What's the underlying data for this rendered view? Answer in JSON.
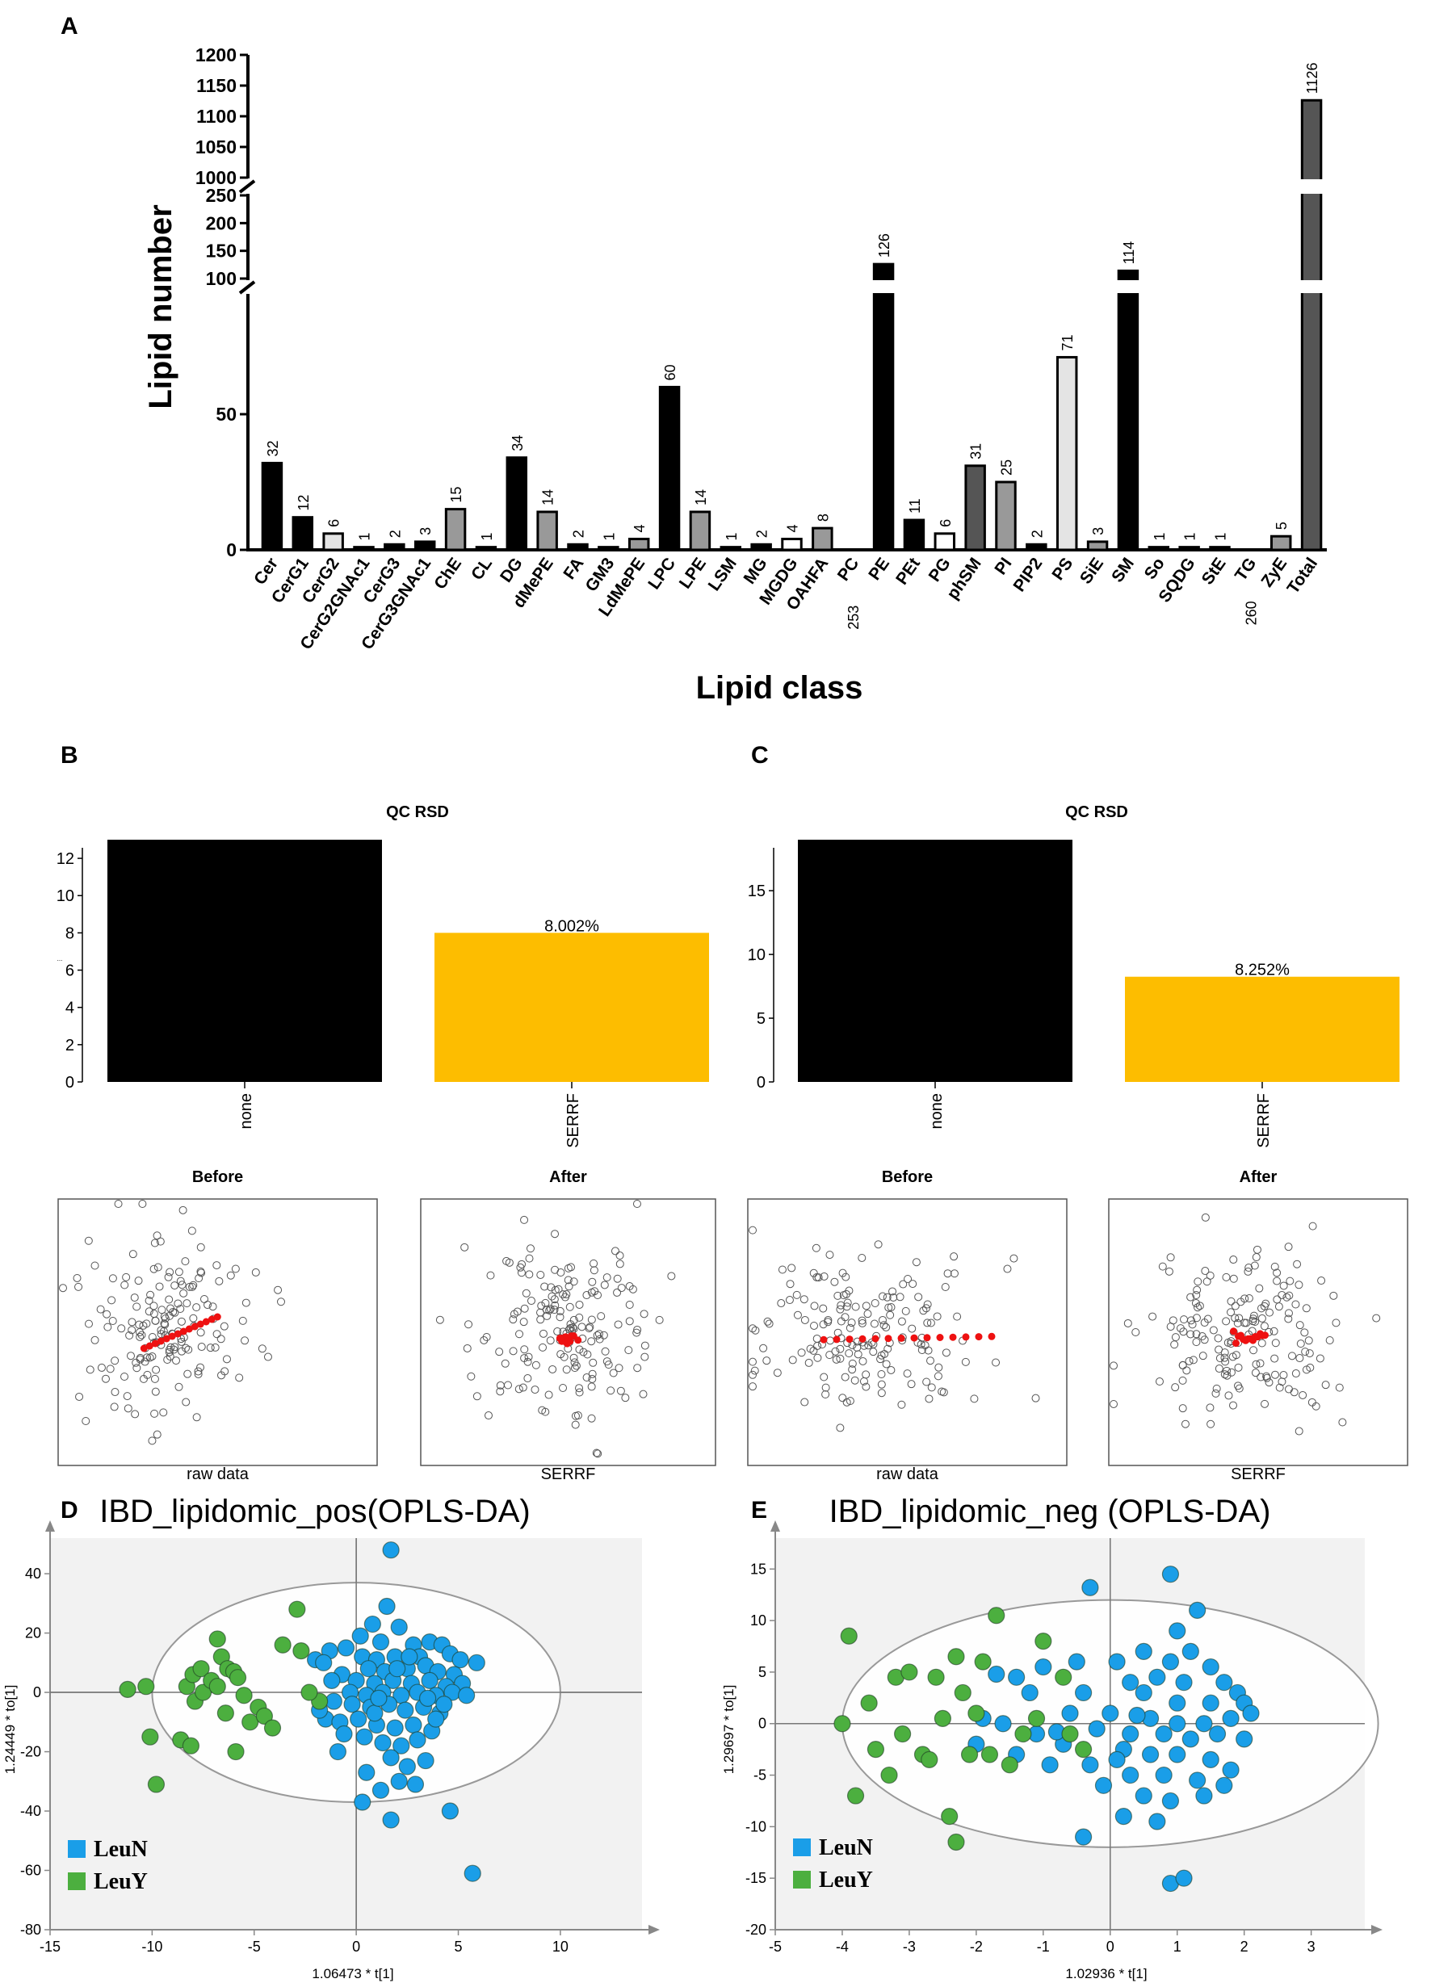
{
  "panels": {
    "A": "A",
    "B": "B",
    "C": "C",
    "D": "D",
    "E": "E"
  },
  "chart_data": [
    {
      "id": "A",
      "type": "bar",
      "title": "",
      "xlabel": "Lipid class",
      "ylabel": "Lipid number",
      "axis_breaks": [
        [
          100,
          1000
        ],
        [
          250,
          1000
        ]
      ],
      "yticks_lower": [
        "0",
        "50",
        "100"
      ],
      "yticks_middle": [
        "150",
        "200",
        "250"
      ],
      "yticks_upper": [
        "1000",
        "1050",
        "1100",
        "1150",
        "1200"
      ],
      "categories": [
        "Cer",
        "CerG1",
        "CerG2",
        "CerG2GNAc1",
        "CerG3",
        "CerG3GNAc1",
        "ChE",
        "CL",
        "DG",
        "dMePE",
        "FA",
        "GM3",
        "LdMePE",
        "LPC",
        "LPE",
        "LSM",
        "MG",
        "MGDG",
        "OAHFA",
        "PC",
        "PE",
        "PEt",
        "PG",
        "phSM",
        "PI",
        "PIP2",
        "PS",
        "SiE",
        "SM",
        "So",
        "SQDG",
        "StE",
        "TG",
        "ZyE",
        "Total"
      ],
      "values": [
        32,
        12,
        6,
        1,
        2,
        3,
        15,
        1,
        34,
        14,
        2,
        1,
        4,
        60,
        14,
        1,
        2,
        4,
        8,
        253,
        126,
        11,
        6,
        31,
        25,
        2,
        71,
        3,
        114,
        1,
        1,
        1,
        260,
        5,
        1126
      ],
      "value_labels": [
        "32",
        "12",
        "6",
        "1",
        "2",
        "3",
        "15",
        "1",
        "34",
        "14",
        "2",
        "1",
        "4",
        "60",
        "14",
        "1",
        "2",
        "4",
        "8",
        "253",
        "126",
        "11",
        "6",
        "31",
        "25",
        "2",
        "71",
        "3",
        "114",
        "1",
        "1",
        "1",
        "260",
        "5",
        "1126"
      ],
      "fills": [
        "black",
        "black",
        "light",
        "black",
        "black",
        "black",
        "gray",
        "black",
        "black",
        "gray",
        "black",
        "black",
        "gray",
        "black",
        "gray",
        "black",
        "black",
        "white",
        "gray",
        "black",
        "black",
        "black",
        "white",
        "dgray",
        "gray",
        "black",
        "light",
        "gray",
        "black",
        "black",
        "black",
        "black",
        "dgray",
        "gray",
        "dgray"
      ],
      "colors": {
        "black": "#000000",
        "dgray": "#555555",
        "gray": "#999999",
        "light": "#e4e4e4",
        "white": "#ffffff"
      }
    },
    {
      "id": "B",
      "type": "bar",
      "title": "QC RSD",
      "categories": [
        "none",
        "SERRF"
      ],
      "values": [
        13.5,
        8.002
      ],
      "value_labels": [
        "",
        "8.002%"
      ],
      "yticks": [
        "0",
        "2",
        "4",
        "6",
        "8",
        "10",
        "12"
      ],
      "ylim": [
        0,
        13
      ],
      "ylabel": "...",
      "colors": [
        "#000000",
        "#fdbd00"
      ]
    },
    {
      "id": "C",
      "type": "bar",
      "title": "QC RSD",
      "categories": [
        "none",
        "SERRF"
      ],
      "values": [
        19,
        8.252
      ],
      "value_labels": [
        "",
        "8.252%"
      ],
      "yticks": [
        "0",
        "5",
        "10",
        "15"
      ],
      "ylim": [
        0,
        19
      ],
      "ylabel": "...",
      "colors": [
        "#000000",
        "#fdbd00"
      ]
    },
    {
      "id": "B-scatter",
      "type": "scatter",
      "panels": [
        {
          "title": "Before",
          "xlabel": "raw data"
        },
        {
          "title": "After",
          "xlabel": "SERRF"
        }
      ]
    },
    {
      "id": "C-scatter",
      "type": "scatter",
      "panels": [
        {
          "title": "Before",
          "xlabel": "raw data"
        },
        {
          "title": "After",
          "xlabel": "SERRF"
        }
      ]
    },
    {
      "id": "D",
      "type": "scatter",
      "title": "IBD_lipidomic_pos(OPLS-DA)",
      "xlabel": "1.06473 * t[1]",
      "ylabel": "1.24449 * to[1]",
      "xticks": [
        "-15",
        "-10",
        "-5",
        "0",
        "5",
        "10"
      ],
      "yticks": [
        "-80",
        "-60",
        "-40",
        "-20",
        "0",
        "20",
        "40"
      ],
      "xlim": [
        -15,
        14
      ],
      "ylim": [
        -80,
        52
      ],
      "ellipse": {
        "cx": 0,
        "cy": 0,
        "rx": 10,
        "ry": 37
      },
      "legend": [
        {
          "name": "LeuN",
          "color": "#1a9ee8"
        },
        {
          "name": "LeuY",
          "color": "#4caf3f"
        }
      ],
      "series": [
        {
          "name": "LeuN",
          "points": [
            [
              1.7,
              48
            ],
            [
              1.5,
              29
            ],
            [
              0.8,
              23
            ],
            [
              2.1,
              22
            ],
            [
              0.2,
              19
            ],
            [
              1.2,
              17
            ],
            [
              2.8,
              16
            ],
            [
              3.6,
              17
            ],
            [
              4.2,
              16
            ],
            [
              -0.5,
              15
            ],
            [
              -1.3,
              14
            ],
            [
              -2.0,
              11
            ],
            [
              -1.6,
              10
            ],
            [
              0.3,
              12
            ],
            [
              1.0,
              11
            ],
            [
              1.9,
              12
            ],
            [
              3.1,
              12
            ],
            [
              4.6,
              13
            ],
            [
              5.1,
              11
            ],
            [
              5.9,
              10
            ],
            [
              0.6,
              8
            ],
            [
              1.4,
              7
            ],
            [
              2.5,
              8
            ],
            [
              3.4,
              9
            ],
            [
              4.0,
              7
            ],
            [
              4.8,
              6
            ],
            [
              -0.7,
              6
            ],
            [
              -1.2,
              4
            ],
            [
              0.0,
              4
            ],
            [
              0.9,
              3
            ],
            [
              1.8,
              4
            ],
            [
              2.7,
              3
            ],
            [
              3.6,
              4
            ],
            [
              4.4,
              2
            ],
            [
              5.2,
              3
            ],
            [
              -0.3,
              0
            ],
            [
              0.5,
              -1
            ],
            [
              1.3,
              0
            ],
            [
              2.2,
              -1
            ],
            [
              3.0,
              0
            ],
            [
              3.9,
              -1
            ],
            [
              4.7,
              0
            ],
            [
              -1.1,
              -3
            ],
            [
              -0.2,
              -4
            ],
            [
              0.7,
              -5
            ],
            [
              1.6,
              -4
            ],
            [
              2.4,
              -6
            ],
            [
              3.3,
              -5
            ],
            [
              4.1,
              -7
            ],
            [
              -1.5,
              -9
            ],
            [
              -0.8,
              -10
            ],
            [
              0.1,
              -9
            ],
            [
              1.0,
              -11
            ],
            [
              1.9,
              -12
            ],
            [
              2.8,
              -11
            ],
            [
              3.7,
              -13
            ],
            [
              0.4,
              -15
            ],
            [
              1.3,
              -17
            ],
            [
              2.2,
              -18
            ],
            [
              3.0,
              -16
            ],
            [
              1.7,
              -22
            ],
            [
              2.5,
              -25
            ],
            [
              3.4,
              -23
            ],
            [
              2.1,
              -30
            ],
            [
              2.9,
              -31
            ],
            [
              1.2,
              -33
            ],
            [
              0.5,
              -27
            ],
            [
              -0.6,
              -14
            ],
            [
              -1.8,
              -6
            ],
            [
              2.0,
              8
            ],
            [
              0.9,
              -7
            ],
            [
              3.5,
              -2
            ],
            [
              4.3,
              -4
            ],
            [
              5.4,
              -1
            ],
            [
              -0.9,
              -20
            ],
            [
              0.3,
              -37
            ],
            [
              1.7,
              -43
            ],
            [
              4.6,
              -40
            ],
            [
              5.7,
              -61
            ],
            [
              2.6,
              12
            ],
            [
              1.1,
              -2
            ],
            [
              3.9,
              -9
            ]
          ]
        },
        {
          "name": "LeuY",
          "points": [
            [
              -11.2,
              1
            ],
            [
              -10.3,
              2
            ],
            [
              -10.1,
              -15
            ],
            [
              -9.8,
              -31
            ],
            [
              -8.6,
              -16
            ],
            [
              -8.1,
              -18
            ],
            [
              -7.9,
              -3
            ],
            [
              -8.3,
              2
            ],
            [
              -8.0,
              6
            ],
            [
              -7.5,
              0
            ],
            [
              -7.6,
              8
            ],
            [
              -7.1,
              4
            ],
            [
              -6.8,
              2
            ],
            [
              -6.6,
              12
            ],
            [
              -6.8,
              18
            ],
            [
              -6.3,
              8
            ],
            [
              -6.0,
              7
            ],
            [
              -5.8,
              5
            ],
            [
              -5.5,
              -1
            ],
            [
              -6.4,
              -7
            ],
            [
              -5.2,
              -10
            ],
            [
              -4.8,
              -5
            ],
            [
              -4.5,
              -8
            ],
            [
              -4.1,
              -12
            ],
            [
              -5.9,
              -20
            ],
            [
              -3.6,
              16
            ],
            [
              -2.7,
              14
            ],
            [
              -2.9,
              28
            ],
            [
              -1.8,
              -3
            ],
            [
              -2.3,
              0
            ]
          ]
        }
      ]
    },
    {
      "id": "E",
      "type": "scatter",
      "title": "IBD_lipidomic_neg (OPLS-DA)",
      "xlabel": "1.02936 * t[1]",
      "ylabel": "1.29697 * to[1]",
      "xticks": [
        "-5",
        "-4",
        "-3",
        "-2",
        "-1",
        "0",
        "1",
        "2",
        "3"
      ],
      "yticks": [
        "-20",
        "-15",
        "-10",
        "-5",
        "0",
        "5",
        "10",
        "15"
      ],
      "xlim": [
        -5,
        3.8
      ],
      "ylim": [
        -20,
        18
      ],
      "ellipse": {
        "cx": 0,
        "cy": 0,
        "rx": 4.0,
        "ry": 12
      },
      "legend": [
        {
          "name": "LeuN",
          "color": "#1a9ee8"
        },
        {
          "name": "LeuY",
          "color": "#4caf3f"
        }
      ],
      "series": [
        {
          "name": "LeuN",
          "points": [
            [
              0.9,
              14.5
            ],
            [
              -0.3,
              13.2
            ],
            [
              1.3,
              11
            ],
            [
              1.0,
              9
            ],
            [
              0.5,
              7
            ],
            [
              1.2,
              7
            ],
            [
              -0.5,
              6
            ],
            [
              -1.0,
              5.5
            ],
            [
              0.1,
              6
            ],
            [
              0.9,
              6
            ],
            [
              1.5,
              5.5
            ],
            [
              0.3,
              4
            ],
            [
              0.7,
              4.5
            ],
            [
              1.1,
              4
            ],
            [
              1.7,
              4
            ],
            [
              1.9,
              3
            ],
            [
              2.0,
              2
            ],
            [
              -1.4,
              4.5
            ],
            [
              -1.2,
              3
            ],
            [
              -0.4,
              3
            ],
            [
              0.5,
              3
            ],
            [
              1.0,
              2
            ],
            [
              1.5,
              2
            ],
            [
              2.1,
              1
            ],
            [
              -0.6,
              1
            ],
            [
              0.0,
              1
            ],
            [
              0.6,
              0.5
            ],
            [
              1.0,
              0
            ],
            [
              1.4,
              0
            ],
            [
              1.8,
              0.5
            ],
            [
              -1.6,
              0
            ],
            [
              -1.1,
              -1
            ],
            [
              -0.2,
              -0.5
            ],
            [
              0.3,
              -1
            ],
            [
              0.8,
              -1
            ],
            [
              1.2,
              -1.5
            ],
            [
              1.6,
              -1
            ],
            [
              -2.0,
              -2
            ],
            [
              -1.4,
              -3
            ],
            [
              -0.7,
              -2
            ],
            [
              0.2,
              -2.5
            ],
            [
              0.6,
              -3
            ],
            [
              1.0,
              -3
            ],
            [
              1.5,
              -3.5
            ],
            [
              -0.3,
              -4
            ],
            [
              0.3,
              -5
            ],
            [
              0.8,
              -5
            ],
            [
              1.3,
              -5.5
            ],
            [
              1.7,
              -6
            ],
            [
              -0.1,
              -6
            ],
            [
              0.5,
              -7
            ],
            [
              0.9,
              -7.5
            ],
            [
              1.4,
              -7
            ],
            [
              0.2,
              -9
            ],
            [
              0.7,
              -9.5
            ],
            [
              -0.4,
              -11
            ],
            [
              0.9,
              -15.5
            ],
            [
              1.1,
              -15
            ],
            [
              -1.7,
              4.8
            ],
            [
              -1.9,
              0.5
            ],
            [
              -0.9,
              -4
            ],
            [
              0.1,
              -3.5
            ],
            [
              2.0,
              -1.5
            ],
            [
              1.8,
              -4.5
            ],
            [
              0.4,
              0.8
            ],
            [
              -0.8,
              -0.8
            ]
          ]
        },
        {
          "name": "LeuY",
          "points": [
            [
              -3.9,
              8.5
            ],
            [
              -4.0,
              0
            ],
            [
              -3.6,
              2
            ],
            [
              -3.8,
              -7
            ],
            [
              -3.2,
              4.5
            ],
            [
              -3.0,
              5
            ],
            [
              -3.1,
              -1
            ],
            [
              -3.3,
              -5
            ],
            [
              -2.8,
              -3
            ],
            [
              -2.6,
              4.5
            ],
            [
              -2.5,
              0.5
            ],
            [
              -2.4,
              -9
            ],
            [
              -2.3,
              -11.5
            ],
            [
              -2.2,
              3
            ],
            [
              -2.1,
              -3
            ],
            [
              -2.0,
              1
            ],
            [
              -1.9,
              6
            ],
            [
              -1.8,
              -3
            ],
            [
              -1.7,
              10.5
            ],
            [
              -1.5,
              -4
            ],
            [
              -1.3,
              -1
            ],
            [
              -1.1,
              0.5
            ],
            [
              -1.0,
              8
            ],
            [
              -0.7,
              4.5
            ],
            [
              -0.6,
              -1
            ],
            [
              -0.4,
              -2.5
            ],
            [
              -2.3,
              6.5
            ],
            [
              -3.5,
              -2.5
            ],
            [
              -2.7,
              -3.5
            ]
          ]
        }
      ]
    }
  ]
}
